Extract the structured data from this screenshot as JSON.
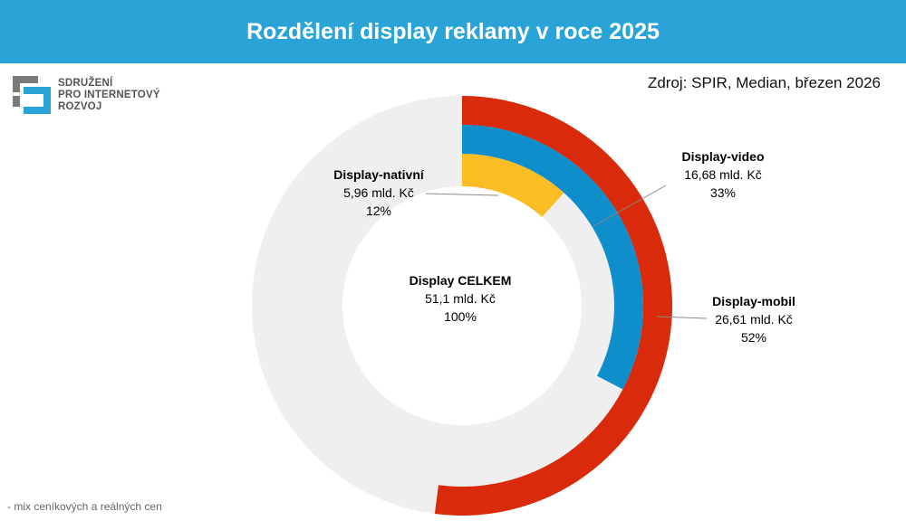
{
  "header": {
    "title": "Rozdělení display reklamy v roce 2025"
  },
  "logo": {
    "line1": "SDRUŽENÍ",
    "line2": "PRO INTERNETOVÝ",
    "line3": "ROZVOJ"
  },
  "source_note": "Zdroj: SPIR, Median, březen 2026",
  "footnote": "- mix ceníkových a reálných cen",
  "colors": {
    "header": "#2aa3d6",
    "mobil": "#d92b0b",
    "video": "#0e8ecb",
    "nativni": "#fbbd24",
    "track": "#efefef"
  },
  "chart_data": {
    "type": "donut",
    "title": "Rozdělení display reklamy v roce 2025",
    "total": {
      "label": "Display CELKEM",
      "value_text": "51,1 mld. Kč",
      "pct_text": "100%",
      "value": 51.1,
      "pct": 100
    },
    "series": [
      {
        "name": "Display-mobil",
        "value": 26.61,
        "pct": 52,
        "value_text": "26,61 mld. Kč",
        "pct_text": "52%",
        "color": "#d92b0b"
      },
      {
        "name": "Display-video",
        "value": 16.68,
        "pct": 33,
        "value_text": "16,68 mld. Kč",
        "pct_text": "33%",
        "color": "#0e8ecb"
      },
      {
        "name": "Display-nativní",
        "value": 5.96,
        "pct": 12,
        "value_text": "5,96 mld. Kč",
        "pct_text": "12%",
        "color": "#fbbd24"
      }
    ]
  }
}
